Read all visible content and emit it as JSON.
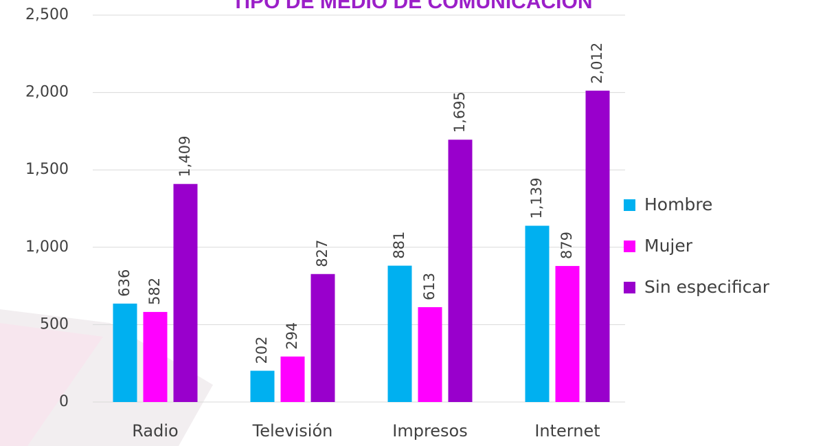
{
  "chart_data": {
    "type": "bar",
    "title": "TIPO DE MEDIO DE COMUNICACIÓN",
    "categories": [
      "Radio",
      "Televisión",
      "Impresos",
      "Internet"
    ],
    "series": [
      {
        "name": "Hombre",
        "color": "#00b0f0",
        "values": [
          636,
          202,
          881,
          1139
        ],
        "value_labels": [
          "636",
          "202",
          "881",
          "1,139"
        ]
      },
      {
        "name": "Mujer",
        "color": "#ff00ff",
        "values": [
          582,
          294,
          613,
          879
        ],
        "value_labels": [
          "582",
          "294",
          "613",
          "879"
        ]
      },
      {
        "name": "Sin especificar",
        "color": "#9900cc",
        "values": [
          1409,
          827,
          1695,
          2012
        ],
        "value_labels": [
          "1,409",
          "827",
          "1,695",
          "2,012"
        ]
      }
    ],
    "ylim": [
      0,
      2500
    ],
    "yticks": [
      0,
      500,
      {
        "value": 1000,
        "label": "1,000"
      },
      {
        "value": 1500,
        "label": "1,500"
      },
      {
        "value": 2000,
        "label": "2,000"
      },
      {
        "value": 2500,
        "label": "2,500"
      }
    ],
    "grid": true,
    "legend": "right"
  }
}
